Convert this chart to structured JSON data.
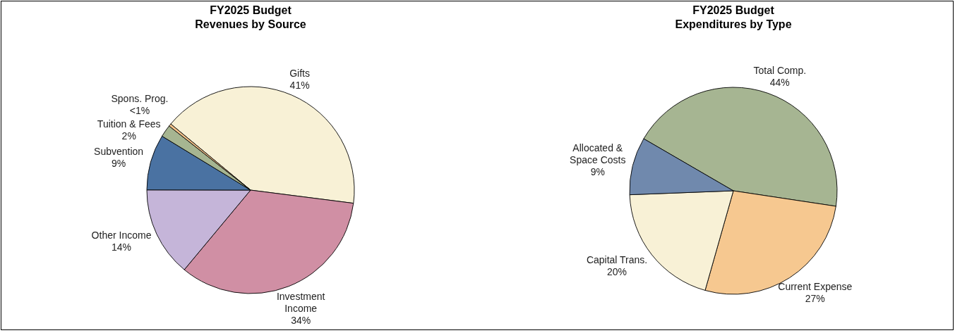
{
  "chart_data": [
    {
      "type": "pie",
      "title": "FY2025 Budget",
      "subtitle": "Revenues by Source",
      "categories": [
        "Gifts",
        "Investment Income",
        "Other Income",
        "Subvention",
        "Tuition & Fees",
        "Spons. Prog."
      ],
      "values": [
        41,
        34,
        14,
        8.7,
        1.9,
        0.4
      ],
      "value_labels": [
        "41%",
        "34%",
        "14%",
        "9%",
        "2%",
        "<1%"
      ],
      "colors": [
        "#f8f1d6",
        "#d08fa4",
        "#c5b5d9",
        "#4a72a2",
        "#a6b591",
        "#f3c28a"
      ]
    },
    {
      "type": "pie",
      "title": "FY2025 Budget",
      "subtitle": "Expenditures by Type",
      "categories": [
        "Total Comp.",
        "Current Expense",
        "Capital Trans.",
        "Allocated & Space Costs"
      ],
      "values": [
        44,
        27,
        20,
        9
      ],
      "value_labels": [
        "44%",
        "27%",
        "20%",
        "9%"
      ],
      "colors": [
        "#a6b592",
        "#f6c890",
        "#f8f1d6",
        "#7089ad"
      ]
    }
  ]
}
